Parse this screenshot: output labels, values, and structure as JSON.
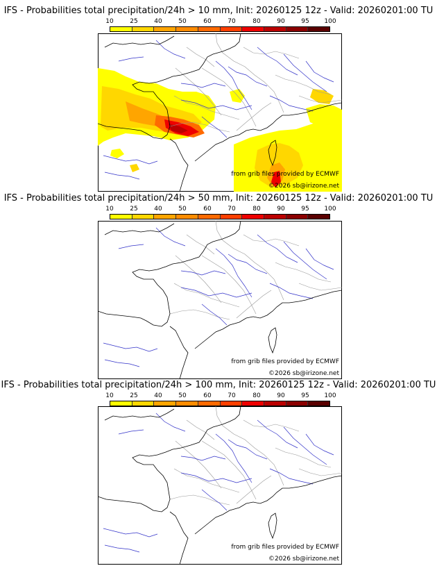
{
  "scale": {
    "labels": [
      "10",
      "25",
      "40",
      "50",
      "60",
      "70",
      "80",
      "90",
      "95",
      "100"
    ],
    "colors": [
      "#ffff00",
      "#ffd700",
      "#ffa500",
      "#ff8c00",
      "#ff6a00",
      "#ff4000",
      "#ee0000",
      "#bb0000",
      "#8b0000",
      "#5a0000"
    ]
  },
  "panels": [
    {
      "title": "IFS - Probabilities total precipitation/24h > 10 mm, Init: 20260125 12z - Valid: 20260201:00 TU",
      "credit_source": "from grib files provided by ECMWF",
      "credit_copyright": "©2026 sb@irizone.net",
      "has_precip": true
    },
    {
      "title": "IFS - Probabilities total precipitation/24h > 50 mm, Init: 20260125 12z - Valid: 20260201:00 TU",
      "credit_source": "from grib files provided by ECMWF",
      "credit_copyright": "©2026 sb@irizone.net",
      "has_precip": false
    },
    {
      "title": "IFS - Probabilities total precipitation/24h > 100 mm, Init: 20260125 12z - Valid: 20260201:00 TU",
      "credit_source": "from grib files provided by ECMWF",
      "credit_copyright": "©2026 sb@irizone.net",
      "has_precip": false
    }
  ]
}
